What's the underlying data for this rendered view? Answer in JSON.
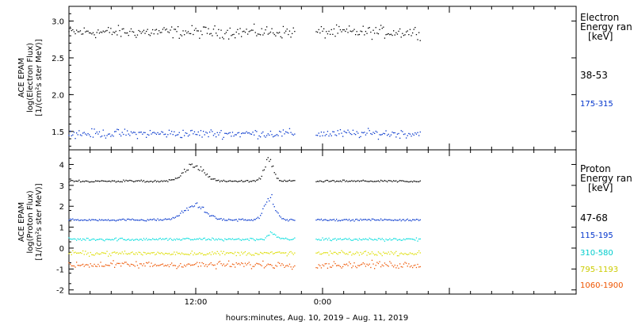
{
  "x_axis": {
    "ticks": [
      "12:00",
      "0:00"
    ],
    "label": "hours:minutes, Aug. 10, 2019 – Aug. 11, 2019"
  },
  "chart_data": [
    {
      "type": "scatter",
      "ylabel": "ACE EPAM log(Electron Flux) [1/(cm²s ster MeV)]",
      "ylabel_lines": [
        "ACE EPAM",
        "log(Electron Flux)",
        "[1/(cm²s ster MeV)]"
      ],
      "ylim": [
        1.25,
        3.2
      ],
      "yticks": [
        "1.5",
        "2.0",
        "2.5",
        "3.0"
      ],
      "ytick_values": [
        1.5,
        2.0,
        2.5,
        3.0
      ],
      "x_range_hours": [
        0,
        48
      ],
      "data_gap_hours": [
        21.4,
        23.3
      ],
      "legend": {
        "title_lines": [
          "Electron",
          "Energy ran",
          "[keV]"
        ]
      },
      "series": [
        {
          "name": "38-53",
          "color": "#000000",
          "level": 2.85,
          "noise": 0.07
        },
        {
          "name": "175-315",
          "color": "#0033cc",
          "level": 1.47,
          "noise": 0.05
        }
      ]
    },
    {
      "type": "scatter",
      "ylabel": "ACE EPAM log(Proton Flux) [1/(cm²s ster MeV)]",
      "ylabel_lines": [
        "ACE EPAM",
        "log(Proton Flux)",
        "[1/(cm²s ster MeV)]"
      ],
      "ylim": [
        -2.2,
        4.7
      ],
      "yticks": [
        "-2",
        "-1",
        "0",
        "1",
        "2",
        "3",
        "4"
      ],
      "ytick_values": [
        -2,
        -1,
        0,
        1,
        2,
        3,
        4
      ],
      "x_range_hours": [
        0,
        48
      ],
      "data_gap_hours": [
        21.4,
        23.3
      ],
      "legend": {
        "title_lines": [
          "Proton",
          "Energy ran",
          "[keV]"
        ]
      },
      "series": [
        {
          "name": "47-68",
          "color": "#000000",
          "level": 3.2,
          "noise": 0.04,
          "enhancements": [
            {
              "center": 11.8,
              "width": 1.3,
              "peak": 0.75
            },
            {
              "center": 18.9,
              "width": 0.6,
              "peak": 1.0
            }
          ]
        },
        {
          "name": "115-195",
          "color": "#0033cc",
          "level": 1.35,
          "noise": 0.04,
          "enhancements": [
            {
              "center": 11.9,
              "width": 1.4,
              "peak": 0.7
            },
            {
              "center": 19.0,
              "width": 0.7,
              "peak": 1.1
            }
          ]
        },
        {
          "name": "310-580",
          "color": "#00dddd",
          "level": 0.42,
          "noise": 0.06,
          "enhancements": [
            {
              "center": 19.2,
              "width": 0.5,
              "peak": 0.3
            }
          ]
        },
        {
          "name": "795-1193",
          "color": "#dddd00",
          "level": -0.25,
          "noise": 0.09
        },
        {
          "name": "1060-1900",
          "color": "#ee5500",
          "level": -0.8,
          "noise": 0.14
        }
      ]
    }
  ]
}
